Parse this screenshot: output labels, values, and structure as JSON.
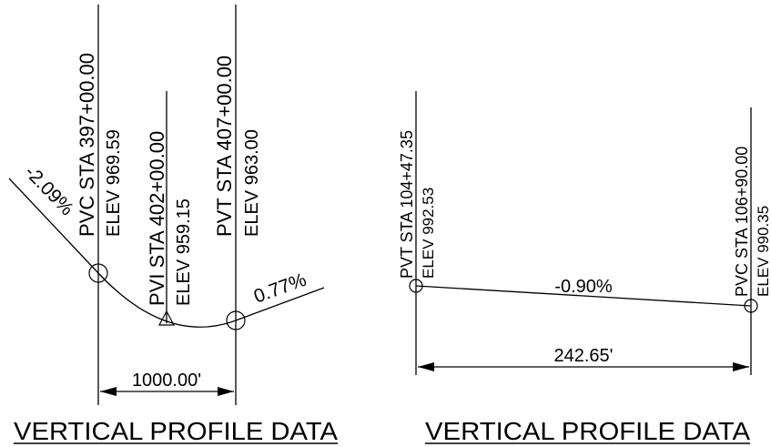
{
  "left_profile": {
    "pvc_sta": "PVC STA 397+00.00",
    "pvc_elev": "ELEV 969.59",
    "pvi_sta": "PVI STA 402+00.00",
    "pvi_elev": "ELEV 959.15",
    "pvt_sta": "PVT STA 407+00.00",
    "pvt_elev": "ELEV 963.00",
    "grade_in": "-2.09%",
    "grade_out": "0.77%",
    "curve_length": "1000.00'",
    "caption": "VERTICAL PROFILE DATA"
  },
  "right_profile": {
    "pvt_sta": "PVT STA 104+47.35",
    "pvt_elev": "ELEV 992.53",
    "pvc_sta": "PVC STA 106+90.00",
    "pvc_elev": "ELEV 990.35",
    "grade": "-0.90%",
    "length": "242.65'",
    "caption": "VERTICAL PROFILE DATA"
  }
}
